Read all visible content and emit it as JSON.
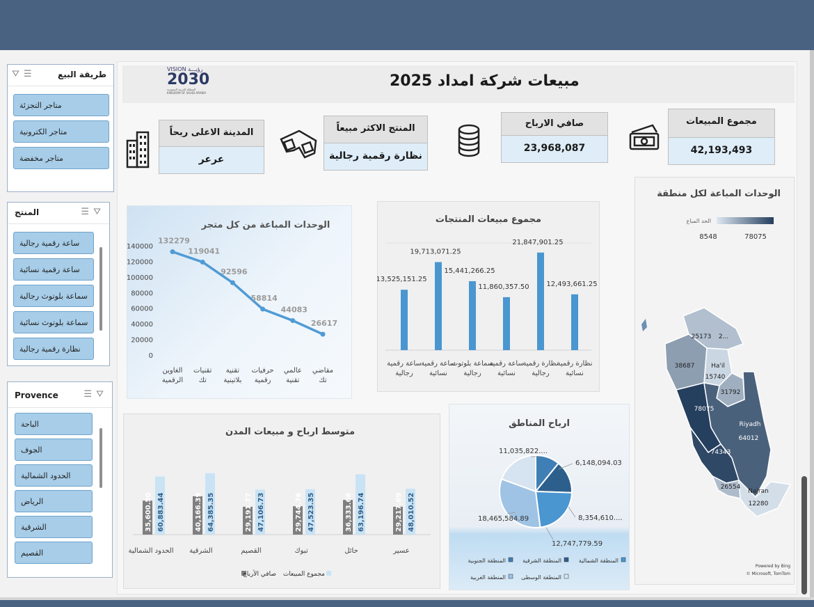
{
  "header": {
    "title": "مبيعات شركة امداد  2025"
  },
  "logo": {
    "vision": "VISION",
    "vision_ar": "رؤيـــة",
    "year": "2030",
    "sub1": "المملكة العربية السعودية",
    "sub2": "KINGDOM OF SAUDI ARABIA"
  },
  "slicers": {
    "sale_method": {
      "title": "طريقة البيع",
      "items": [
        "متاجر التجزئة",
        "متاجر الكترونية",
        "متاجر مخفضة"
      ]
    },
    "product": {
      "title": "المنتج",
      "items": [
        "ساعة رقمية رجالية",
        "ساعة رقمية نسائية",
        "سماعة بلوتوث رجالية",
        "سماعة بلوتوث نسائية",
        "نظارة رقمية رجالية"
      ]
    },
    "province": {
      "title": "Provence",
      "items": [
        "الباحة",
        "الجوف",
        "الحدود الشمالية",
        "الرياض",
        "الشرقية",
        "القصيم"
      ]
    }
  },
  "kpis": {
    "total_sales": {
      "label": "مجموع المبيعات",
      "value": "42,193,493"
    },
    "net_profit": {
      "label": "صافي الارباح",
      "value": "23,968,087"
    },
    "top_product": {
      "label": "المنتج الاكثر مبيعاً",
      "value": "نظارة رقمية رجالية"
    },
    "top_city": {
      "label": "المدينة الاعلى ربحاً",
      "value": "عرعر"
    }
  },
  "icons": {
    "money": "money-icon",
    "coins": "coins-icon",
    "glasses": "3d-glasses-icon",
    "buildings": "buildings-icon",
    "select_all": "multi-select-icon",
    "clear_filter": "clear-filter-icon"
  },
  "chart_data": [
    {
      "type": "line",
      "title": "الوحدات المباعة من كل متجر",
      "categories": [
        "الغاوين الرقمية",
        "تقنيات تك",
        "تقنية بلاتينية",
        "حرفيات رقمية",
        "عالمي تقنية",
        "مقاضي تك"
      ],
      "values": [
        132279,
        119041,
        92596,
        58814,
        44083,
        26617
      ],
      "yticks": [
        "140000",
        "120000",
        "100000",
        "80000",
        "60000",
        "40000",
        "20000",
        "0"
      ],
      "ylim": [
        0,
        140000
      ],
      "color": "#4f9bd6"
    },
    {
      "type": "bar",
      "title": "مجموع مبيعات المنتجات",
      "categories": [
        "نظارة رقمية نسائية",
        "نظارة رقمية رجالية",
        "ساعة رقمية نسائية",
        "سماعة بلوتوث رجالية",
        "ساعة رقمية نسائية",
        "ساعة رقمية رجالية"
      ],
      "values": [
        12493661.25,
        21847901.25,
        11860357.5,
        15441266.25,
        19713071.25,
        13525151.25
      ],
      "value_labels": [
        "12,493,661.25",
        "21,847,901.25",
        "11,860,357.50",
        "15,441,266.25",
        "19,713,071.25",
        "13,525,151.25"
      ],
      "ylim": [
        0,
        24000000
      ],
      "color": "#4a96d0"
    },
    {
      "type": "bar",
      "title": "متوسط ارباح و مبيعات المدن",
      "categories": [
        "عسير",
        "حائل",
        "تبوك",
        "القصيم",
        "الشرقية",
        "الحدود الشمالية"
      ],
      "series": [
        {
          "name": "صافي الأرباح",
          "values": [
            29217.69,
            36333.66,
            29744.76,
            29191.77,
            40166.39,
            35600.5
          ],
          "labels": [
            "29,217.69",
            "36,333.66",
            "29,744.76",
            "29,191.77",
            "40,166.39",
            "35,600.50"
          ],
          "color": "#7f7f7f"
        },
        {
          "name": "مجموع المبيعات",
          "values": [
            48010.52,
            63196.74,
            47523.35,
            47106.73,
            64385.35,
            60883.44
          ],
          "labels": [
            "48,010.52",
            "63,196.74",
            "47,523.35",
            "47,106.73",
            "64,385.35",
            "60,883.44"
          ],
          "color": "#c9e3f5"
        }
      ],
      "ylim": [
        0,
        70000
      ]
    },
    {
      "type": "pie",
      "title": "ارباح المناطق",
      "labels": [
        "المنطقة الجنوبية",
        "المنطقة الشرقية",
        "المنطقة الشمالية",
        "المنطقة الغربية",
        "المنطقة الوسطى"
      ],
      "values": [
        6148094.03,
        8354610,
        12747779.59,
        18465584.89,
        11035822
      ],
      "value_labels": [
        "6,148,094.03",
        "8,354,610....",
        "12,747,779.59",
        "18,465,584.89",
        "11,035,822...."
      ],
      "colors": [
        "#3f7fb5",
        "#2c5f8c",
        "#4a96d0",
        "#9fc3e4",
        "#d6e3f0"
      ]
    },
    {
      "type": "heatmap",
      "title": "الوحدات المباعة لكل منطقة",
      "legend_title": "الحد المباع",
      "range": [
        8548,
        78075
      ],
      "range_labels": [
        "8548",
        "78075"
      ],
      "regions": [
        {
          "name": "",
          "value": 25173
        },
        {
          "name": "",
          "value": 38687
        },
        {
          "name": "Ha'il",
          "value": 15740
        },
        {
          "name": "",
          "value": 31792
        },
        {
          "name": "",
          "value": 78075
        },
        {
          "name": "Riyadh",
          "value": 64012
        },
        {
          "name": "",
          "value": 74343
        },
        {
          "name": "",
          "value": 26554
        },
        {
          "name": "Najran",
          "value": 12280
        }
      ],
      "labels_text": {
        "r1": "25173",
        "r1b": "2...",
        "r2": "38687",
        "r3n": "Ha'il",
        "r3": "15740",
        "r4": "31792",
        "r5": "78075",
        "r6n": "Riyadh",
        "r6": "64012",
        "r7": "74343",
        "r8": "26554",
        "r9n": "Najran",
        "r9": "12280"
      },
      "credit1": "Powered by Bing",
      "credit2": "© Microsoft, TomTom"
    }
  ]
}
